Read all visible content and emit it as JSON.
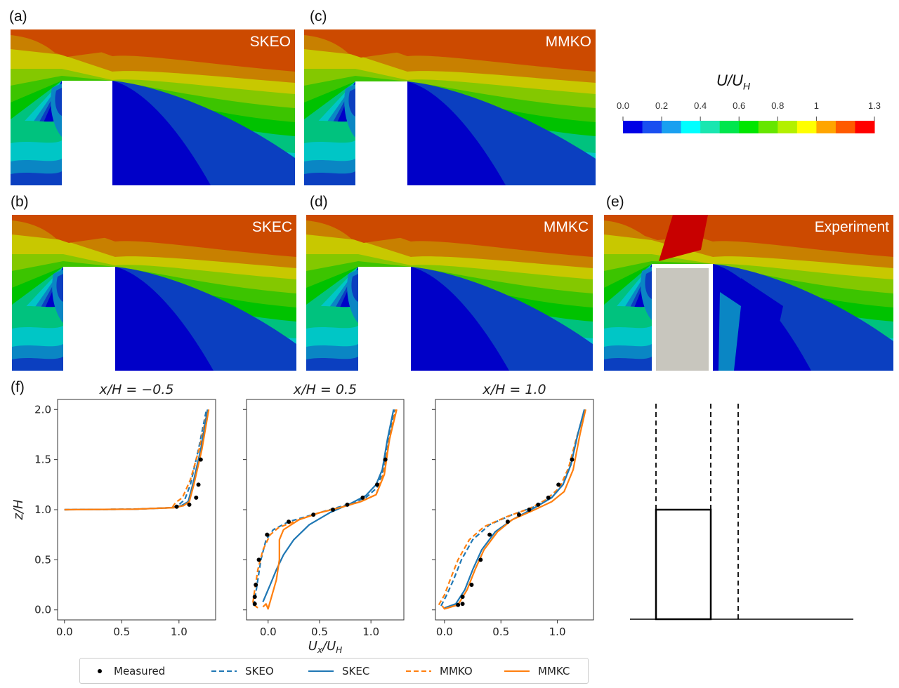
{
  "panels": [
    {
      "id": "a",
      "label": "(a)",
      "model": "SKEO"
    },
    {
      "id": "c",
      "label": "(c)",
      "model": "MMKO"
    },
    {
      "id": "b",
      "label": "(b)",
      "model": "SKEC"
    },
    {
      "id": "d",
      "label": "(d)",
      "model": "MMKC"
    },
    {
      "id": "e",
      "label": "(e)",
      "model": "Experiment"
    }
  ],
  "colorbar": {
    "title_main": "U/U",
    "title_sub": "H",
    "ticks": [
      "0.0",
      "0.2",
      "0.4",
      "0.6",
      "0.8",
      "1",
      "1.3"
    ],
    "tick_values": [
      0.0,
      0.2,
      0.4,
      0.6,
      0.8,
      1.0,
      1.3
    ],
    "range": [
      0.0,
      1.3
    ],
    "colors": [
      "#0000e6",
      "#1a4ff0",
      "#1aa0f0",
      "#00ffff",
      "#19e6b0",
      "#00e64d",
      "#00e600",
      "#66e600",
      "#b3f000",
      "#ffff00",
      "#ffa500",
      "#ff5a00",
      "#ff0000"
    ]
  },
  "contour_colors": [
    "#0000c8",
    "#0b3fc0",
    "#0a86c4",
    "#00c6c6",
    "#00c27e",
    "#00c200",
    "#3cc400",
    "#84c800",
    "#c8c800",
    "#d4a000",
    "#c88000",
    "#cc4a00",
    "#c80000"
  ],
  "profile_label": "(f)",
  "legend": {
    "items": [
      {
        "label": "Measured",
        "style": "marker"
      },
      {
        "label": "SKEO",
        "style": "dashed",
        "color": "#1f77b4"
      },
      {
        "label": "SKEC",
        "style": "solid",
        "color": "#1f77b4"
      },
      {
        "label": "MMKO",
        "style": "dashed",
        "color": "#ff7f0e"
      },
      {
        "label": "MMKC",
        "style": "solid",
        "color": "#ff7f0e"
      }
    ]
  },
  "chart_data": [
    {
      "type": "line",
      "title": "x/H = −0.5",
      "xlabel": "",
      "ylabel": "z/H",
      "xlim": [
        -0.06,
        1.32
      ],
      "ylim": [
        -0.1,
        2.1
      ],
      "xticks": [
        "0.0",
        "0.5",
        "1.0"
      ],
      "xtick_values": [
        0.0,
        0.5,
        1.0
      ],
      "yticks": [
        "0.0",
        "0.5",
        "1.0",
        "1.5",
        "2.0"
      ],
      "ytick_values": [
        0.0,
        0.5,
        1.0,
        1.5,
        2.0
      ],
      "measured": {
        "x": [
          0.98,
          1.09,
          1.15,
          1.17,
          1.19
        ],
        "y": [
          1.03,
          1.05,
          1.12,
          1.25,
          1.5
        ]
      },
      "series": [
        {
          "name": "SKEO",
          "x": [
            0.0,
            0.6,
            0.95,
            1.0,
            1.05,
            1.1,
            1.17,
            1.24
          ],
          "y": [
            1.0,
            1.005,
            1.02,
            1.05,
            1.1,
            1.25,
            1.6,
            2.0
          ]
        },
        {
          "name": "SKEC",
          "x": [
            0.0,
            0.6,
            0.95,
            1.02,
            1.08,
            1.12,
            1.19,
            1.25
          ],
          "y": [
            1.0,
            1.005,
            1.02,
            1.04,
            1.08,
            1.25,
            1.6,
            2.0
          ]
        },
        {
          "name": "MMKO",
          "x": [
            0.0,
            0.6,
            0.94,
            0.97,
            1.03,
            1.1,
            1.18,
            1.25
          ],
          "y": [
            1.0,
            1.005,
            1.02,
            1.07,
            1.12,
            1.3,
            1.62,
            2.0
          ]
        },
        {
          "name": "MMKC",
          "x": [
            0.0,
            0.6,
            0.96,
            1.04,
            1.09,
            1.13,
            1.2,
            1.26
          ],
          "y": [
            1.0,
            1.005,
            1.02,
            1.04,
            1.08,
            1.25,
            1.6,
            2.0
          ]
        }
      ]
    },
    {
      "type": "line",
      "title": "x/H = 0.5",
      "xlabel": "U_x/U_H",
      "ylabel": "",
      "xlim": [
        -0.21,
        1.32
      ],
      "ylim": [
        -0.1,
        2.1
      ],
      "xticks": [
        "0.0",
        "0.5",
        "1.0"
      ],
      "xtick_values": [
        0.0,
        0.5,
        1.0
      ],
      "yticks": [
        "",
        "",
        "",
        "",
        ""
      ],
      "ytick_values": [
        0.0,
        0.5,
        1.0,
        1.5,
        2.0
      ],
      "measured": {
        "x": [
          -0.13,
          -0.13,
          -0.12,
          -0.09,
          -0.01,
          0.2,
          0.44,
          0.63,
          0.77,
          0.92,
          1.06,
          1.14
        ],
        "y": [
          0.06,
          0.13,
          0.25,
          0.5,
          0.75,
          0.88,
          0.95,
          1.0,
          1.05,
          1.12,
          1.25,
          1.5
        ]
      },
      "series": [
        {
          "name": "SKEO",
          "x": [
            -0.14,
            -0.13,
            -0.1,
            -0.07,
            -0.02,
            0.05,
            0.2,
            0.4,
            0.6,
            0.8,
            0.95,
            1.06,
            1.12,
            1.17,
            1.23
          ],
          "y": [
            0.04,
            0.1,
            0.3,
            0.5,
            0.7,
            0.8,
            0.88,
            0.94,
            1.0,
            1.06,
            1.12,
            1.22,
            1.4,
            1.7,
            2.0
          ]
        },
        {
          "name": "SKEC",
          "x": [
            -0.05,
            0.02,
            0.08,
            0.15,
            0.25,
            0.4,
            0.6,
            0.8,
            0.95,
            1.05,
            1.11,
            1.16,
            1.22
          ],
          "y": [
            0.08,
            0.25,
            0.4,
            0.55,
            0.7,
            0.85,
            0.97,
            1.06,
            1.14,
            1.25,
            1.4,
            1.7,
            2.0
          ]
        },
        {
          "name": "MMKO",
          "x": [
            -0.1,
            -0.15,
            -0.13,
            -0.1,
            -0.05,
            0.02,
            0.1,
            0.3,
            0.5,
            0.7,
            0.9,
            1.05,
            1.12,
            1.18,
            1.24
          ],
          "y": [
            0.02,
            0.06,
            0.2,
            0.4,
            0.6,
            0.75,
            0.82,
            0.9,
            0.97,
            1.02,
            1.08,
            1.15,
            1.35,
            1.7,
            2.0
          ]
        },
        {
          "name": "MMKC",
          "x": [
            -0.05,
            -0.02,
            0.0,
            0.08,
            0.11,
            0.11,
            0.15,
            0.3,
            0.5,
            0.7,
            0.9,
            1.05,
            1.13,
            1.18,
            1.25
          ],
          "y": [
            0.03,
            0.06,
            0.01,
            0.3,
            0.5,
            0.7,
            0.8,
            0.9,
            0.97,
            1.02,
            1.08,
            1.15,
            1.35,
            1.7,
            2.0
          ]
        }
      ]
    },
    {
      "type": "line",
      "title": "x/H = 1.0",
      "xlabel": "",
      "ylabel": "",
      "xlim": [
        -0.08,
        1.32
      ],
      "ylim": [
        -0.1,
        2.1
      ],
      "xticks": [
        "0.0",
        "0.5",
        "1.0"
      ],
      "xtick_values": [
        0.0,
        0.5,
        1.0
      ],
      "yticks": [
        "",
        "",
        "",
        "",
        ""
      ],
      "ytick_values": [
        0.0,
        0.5,
        1.0,
        1.5,
        2.0
      ],
      "measured": {
        "x": [
          0.12,
          0.16,
          0.16,
          0.24,
          0.32,
          0.4,
          0.56,
          0.66,
          0.75,
          0.83,
          0.92,
          1.01,
          1.13
        ],
        "y": [
          0.05,
          0.06,
          0.13,
          0.25,
          0.5,
          0.75,
          0.88,
          0.95,
          1.0,
          1.05,
          1.12,
          1.25,
          1.5
        ]
      },
      "series": [
        {
          "name": "SKEO",
          "x": [
            -0.03,
            0.02,
            0.08,
            0.15,
            0.25,
            0.4,
            0.6,
            0.8,
            0.95,
            1.05,
            1.12,
            1.18,
            1.24
          ],
          "y": [
            0.04,
            0.15,
            0.3,
            0.5,
            0.7,
            0.85,
            0.95,
            1.03,
            1.12,
            1.25,
            1.45,
            1.75,
            2.0
          ]
        },
        {
          "name": "SKEC",
          "x": [
            0.0,
            0.1,
            0.18,
            0.25,
            0.33,
            0.45,
            0.6,
            0.8,
            0.95,
            1.05,
            1.12,
            1.18,
            1.24
          ],
          "y": [
            0.02,
            0.06,
            0.2,
            0.4,
            0.6,
            0.78,
            0.9,
            1.02,
            1.12,
            1.25,
            1.45,
            1.75,
            2.0
          ]
        },
        {
          "name": "MMKO",
          "x": [
            -0.05,
            0.0,
            0.05,
            0.12,
            0.22,
            0.35,
            0.55,
            0.75,
            0.9,
            1.02,
            1.1,
            1.17,
            1.25
          ],
          "y": [
            0.05,
            0.15,
            0.3,
            0.5,
            0.7,
            0.83,
            0.93,
            1.01,
            1.1,
            1.22,
            1.42,
            1.72,
            2.0
          ]
        },
        {
          "name": "MMKC",
          "x": [
            -0.02,
            0.0,
            0.12,
            0.2,
            0.27,
            0.35,
            0.47,
            0.6,
            0.8,
            0.95,
            1.06,
            1.14,
            1.2,
            1.25
          ],
          "y": [
            0.04,
            0.01,
            0.05,
            0.2,
            0.4,
            0.6,
            0.78,
            0.9,
            1.0,
            1.08,
            1.18,
            1.4,
            1.75,
            2.0
          ]
        }
      ]
    },
    {
      "type": "schematic",
      "description": "building outline with measurement lines",
      "building": {
        "x": [
          0.0,
          1.0
        ],
        "z": [
          0.0,
          1.0
        ]
      },
      "profile_lines_x": [
        -0.5,
        0.5,
        1.0
      ]
    }
  ]
}
